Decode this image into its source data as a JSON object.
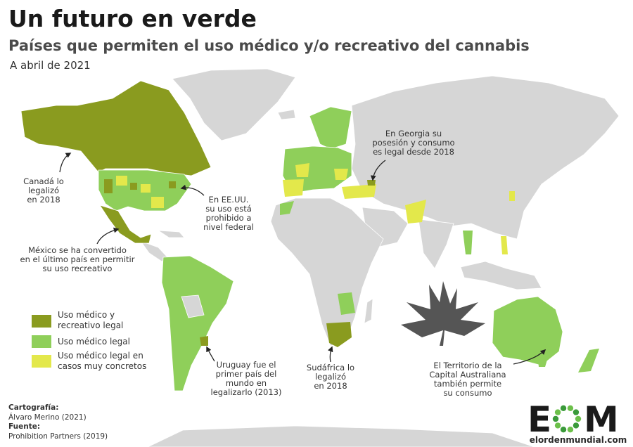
{
  "header": {
    "title": "Un futuro en verde",
    "subtitle": "Países que permiten el uso médico y/o recreativo del cannabis",
    "date": "A abril de 2021"
  },
  "legend": [
    {
      "lines": [
        "Uso médico y",
        "recreativo legal"
      ],
      "color": "#8a9b1f"
    },
    {
      "lines": [
        "Uso médico legal"
      ],
      "color": "#8fcf5a"
    },
    {
      "lines": [
        "Uso médico legal en",
        "casos muy concretos"
      ],
      "color": "#e3e84b"
    }
  ],
  "annotations": {
    "canada": [
      "Canadá lo",
      "legalizó",
      "en 2018"
    ],
    "usa": [
      "En EE.UU.",
      "su uso está",
      "prohibido a",
      "nivel federal"
    ],
    "mexico": [
      "México se ha convertido",
      "en el último país en permitir",
      "su uso recreativo"
    ],
    "georgia": [
      "En Georgia su",
      "posesión y consumo",
      "es legal desde 2018"
    ],
    "uruguay": [
      "Uruguay fue el",
      "primer país del",
      "mundo en",
      "legalizarlo (2013)"
    ],
    "south_africa": [
      "Sudáfrica lo",
      "legalizó",
      "en 2018"
    ],
    "australia": [
      "El Territorio de la",
      "Capital Australiana",
      "también permite",
      "su consumo"
    ]
  },
  "credits": {
    "cartography_label": "Cartografía:",
    "cartography": "Álvaro Merino (2021)",
    "source_label": "Fuente:",
    "source": "Prohibition Partners (2019)"
  },
  "logo": {
    "left": "E",
    "right": "M",
    "site": "elordenmundial.com"
  }
}
